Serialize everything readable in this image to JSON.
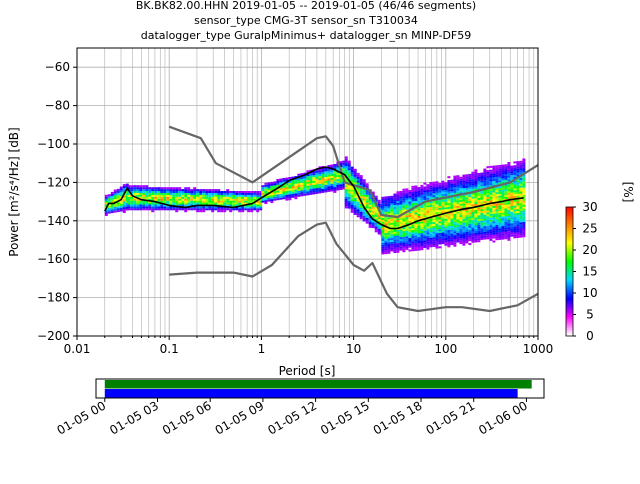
{
  "title_lines": [
    "BK.BK82.00.HHN   2019-01-05 -- 2019-01-05  (46/46 segments)",
    "sensor_type CMG-3T sensor_sn T310034",
    "datalogger_type GuralpMinimus+ datalogger_sn MINP-DF59"
  ],
  "chart_data": [
    {
      "type": "heatmap",
      "title": "BK.BK82.00.HHN   2019-01-05 -- 2019-01-05  (46/46 segments)",
      "xlabel": "Period [s]",
      "ylabel": "Power [m²/s⁴/Hz] [dB]",
      "xscale": "log",
      "xlim": [
        0.01,
        1000
      ],
      "ylim": [
        -200,
        -50
      ],
      "x_ticks": [
        0.01,
        0.1,
        1,
        10,
        100,
        1000
      ],
      "x_tick_labels": [
        "0.01",
        "0.1",
        "1",
        "10",
        "100",
        "1000"
      ],
      "y_ticks": [
        -200,
        -180,
        -160,
        -140,
        -120,
        -100,
        -80,
        -60
      ],
      "y_tick_labels": [
        "−200",
        "−180",
        "−160",
        "−140",
        "−120",
        "−100",
        "−80",
        "−60"
      ],
      "grid": true,
      "colorbar": {
        "label": "[%]",
        "range": [
          0,
          30
        ],
        "ticks": [
          0,
          5,
          10,
          15,
          20,
          25,
          30
        ],
        "tick_labels": [
          "0",
          "5",
          "10",
          "15",
          "20",
          "25",
          "30"
        ],
        "colors": [
          "#ffffff",
          "#ff00ff",
          "#0000ff",
          "#00d8ff",
          "#00ff00",
          "#ffff00",
          "#ff7f00",
          "#ff0000"
        ]
      },
      "series": [
        {
          "color": "#666666",
          "x": [
            0.1,
            0.22,
            0.32,
            0.8,
            4.0,
            5.0,
            6.0,
            8.0,
            15.0,
            20.0,
            30.0,
            60.0,
            200.0,
            500.0,
            1000.0
          ],
          "y": [
            -91,
            -97,
            -110,
            -120,
            -97,
            -96,
            -101,
            -120,
            -124,
            -137,
            -138,
            -130,
            -125,
            -120,
            -111
          ]
        },
        {
          "color": "#666666",
          "x": [
            0.1,
            0.2,
            0.5,
            0.8,
            1.3,
            2.5,
            4.0,
            5.0,
            6.5,
            10.0,
            13.0,
            16.0,
            23.0,
            30.0,
            50.0,
            100.0,
            150.0,
            300.0,
            600.0,
            1000.0
          ],
          "y": [
            -168,
            -167,
            -167,
            -169,
            -163,
            -148,
            -142,
            -141,
            -152,
            -163,
            -166,
            -162,
            -178,
            -185,
            -187,
            -185,
            -185,
            -187,
            -184,
            -178
          ]
        },
        {
          "color": "#000000",
          "x": [
            0.02,
            0.022,
            0.025,
            0.03,
            0.035,
            0.04,
            0.05,
            0.07,
            0.1,
            0.15,
            0.2,
            0.3,
            0.5,
            0.8,
            1.0,
            1.5,
            2.0,
            3.0,
            4.0,
            5.0,
            6.0,
            8.0,
            10.0,
            13.0,
            16.0,
            20.0,
            25.0,
            30.0,
            40.0,
            50.0,
            70.0,
            100.0,
            150.0,
            200.0,
            300.0,
            400.0,
            500.0,
            700.0
          ],
          "y": [
            -135,
            -131,
            -131,
            -129,
            -123,
            -127,
            -129,
            -130,
            -132,
            -133,
            -132,
            -132,
            -133,
            -131,
            -128,
            -123,
            -119,
            -116,
            -113,
            -112,
            -113,
            -116,
            -122,
            -133,
            -139,
            -142,
            -144,
            -144,
            -142,
            -140,
            -138,
            -136,
            -134,
            -133,
            -131,
            -130,
            -129,
            -128
          ]
        }
      ],
      "density_bands": [
        {
          "x": [
            0.02,
            0.035
          ],
          "y_center": [
            -132,
            -127
          ],
          "spread": [
            6,
            9
          ]
        },
        {
          "x": [
            0.035,
            1.0
          ],
          "y_center": [
            -128,
            -130
          ],
          "spread": [
            8,
            6
          ]
        },
        {
          "x": [
            1.0,
            8.0
          ],
          "y_center": [
            -126,
            -116
          ],
          "spread": [
            6,
            9
          ]
        },
        {
          "x": [
            8.0,
            20.0
          ],
          "y_center": [
            -120,
            -140
          ],
          "spread": [
            16,
            10
          ]
        },
        {
          "x": [
            20.0,
            700.0
          ],
          "y_center": [
            -142,
            -128
          ],
          "spread": [
            18,
            24
          ]
        }
      ]
    },
    {
      "type": "bar",
      "xlabel": "",
      "x_tick_labels": [
        "01-05 00",
        "01-05 03",
        "01-05 06",
        "01-05 09",
        "01-05 12",
        "01-05 15",
        "01-05 18",
        "01-05 21",
        "01-06 00"
      ],
      "x_range_hours": [
        -0.5,
        25.0
      ],
      "series": [
        {
          "color": "#008000",
          "start_hour": 0.0,
          "end_hour": 24.3
        },
        {
          "color": "#0000ff",
          "start_hour": 0.0,
          "end_hour": 23.5
        }
      ]
    }
  ]
}
